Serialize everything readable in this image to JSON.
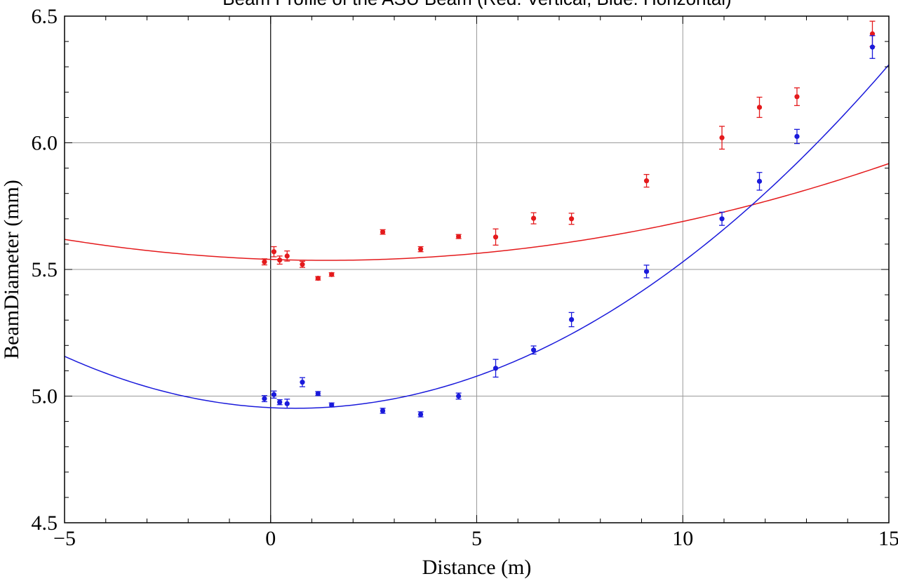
{
  "chart_data": {
    "type": "scatter",
    "title": "Beam Profile of the ASU Beam (Red: Vertical, Blue: Horizontal)",
    "xlabel": "Distance (m)",
    "ylabel": "BeamDiameter (mm)",
    "xlim": [
      -5,
      15
    ],
    "ylim": [
      4.5,
      6.5
    ],
    "x_ticks": [
      -5,
      0,
      5,
      10,
      15
    ],
    "x_tick_labels": [
      "−5",
      "0",
      "5",
      "10",
      "15"
    ],
    "y_ticks": [
      4.5,
      5.0,
      5.5,
      6.0,
      6.5
    ],
    "y_tick_labels": [
      "4.5",
      "5.0",
      "5.5",
      "6.0",
      "6.5"
    ],
    "grid_x": [
      0,
      5,
      10
    ],
    "grid_y": [
      5.0,
      5.5,
      6.0
    ],
    "grid": true,
    "series": [
      {
        "color": "#e41a1c",
        "points": [
          {
            "x": -0.15,
            "y": 5.53,
            "err": 0.012
          },
          {
            "x": 0.08,
            "y": 5.57,
            "err": 0.02
          },
          {
            "x": 0.22,
            "y": 5.537,
            "err": 0.016
          },
          {
            "x": 0.4,
            "y": 5.553,
            "err": 0.02
          },
          {
            "x": 0.77,
            "y": 5.52,
            "err": 0.012
          },
          {
            "x": 1.15,
            "y": 5.465,
            "err": 0.007
          },
          {
            "x": 1.48,
            "y": 5.48,
            "err": 0.007
          },
          {
            "x": 2.72,
            "y": 5.648,
            "err": 0.009
          },
          {
            "x": 3.64,
            "y": 5.58,
            "err": 0.01
          },
          {
            "x": 4.56,
            "y": 5.63,
            "err": 0.008
          },
          {
            "x": 5.46,
            "y": 5.628,
            "err": 0.032
          },
          {
            "x": 6.38,
            "y": 5.702,
            "err": 0.022
          },
          {
            "x": 7.3,
            "y": 5.7,
            "err": 0.022
          },
          {
            "x": 9.12,
            "y": 5.85,
            "err": 0.025
          },
          {
            "x": 10.95,
            "y": 6.02,
            "err": 0.045
          },
          {
            "x": 11.86,
            "y": 6.14,
            "err": 0.04
          },
          {
            "x": 12.77,
            "y": 6.182,
            "err": 0.035
          },
          {
            "x": 14.6,
            "y": 6.43,
            "err": 0.05
          }
        ],
        "fit": {
          "a": 0.00205,
          "b": 1.35,
          "c": 5.536
        }
      },
      {
        "color": "#1a1adb",
        "points": [
          {
            "x": -0.15,
            "y": 4.99,
            "err": 0.012
          },
          {
            "x": 0.08,
            "y": 5.006,
            "err": 0.014
          },
          {
            "x": 0.22,
            "y": 4.976,
            "err": 0.01
          },
          {
            "x": 0.4,
            "y": 4.97,
            "err": 0.018
          },
          {
            "x": 0.77,
            "y": 5.055,
            "err": 0.018
          },
          {
            "x": 1.15,
            "y": 5.01,
            "err": 0.008
          },
          {
            "x": 1.48,
            "y": 4.965,
            "err": 0.008
          },
          {
            "x": 2.72,
            "y": 4.942,
            "err": 0.01
          },
          {
            "x": 3.64,
            "y": 4.928,
            "err": 0.01
          },
          {
            "x": 4.56,
            "y": 5.0,
            "err": 0.012
          },
          {
            "x": 5.46,
            "y": 5.11,
            "err": 0.035
          },
          {
            "x": 6.38,
            "y": 5.182,
            "err": 0.016
          },
          {
            "x": 7.3,
            "y": 5.302,
            "err": 0.028
          },
          {
            "x": 9.12,
            "y": 5.492,
            "err": 0.025
          },
          {
            "x": 10.95,
            "y": 5.7,
            "err": 0.026
          },
          {
            "x": 11.86,
            "y": 5.848,
            "err": 0.035
          },
          {
            "x": 12.77,
            "y": 6.025,
            "err": 0.028
          },
          {
            "x": 14.6,
            "y": 6.378,
            "err": 0.045
          }
        ],
        "fit": {
          "a": 0.00654,
          "b": 0.6,
          "c": 4.952
        }
      }
    ]
  }
}
